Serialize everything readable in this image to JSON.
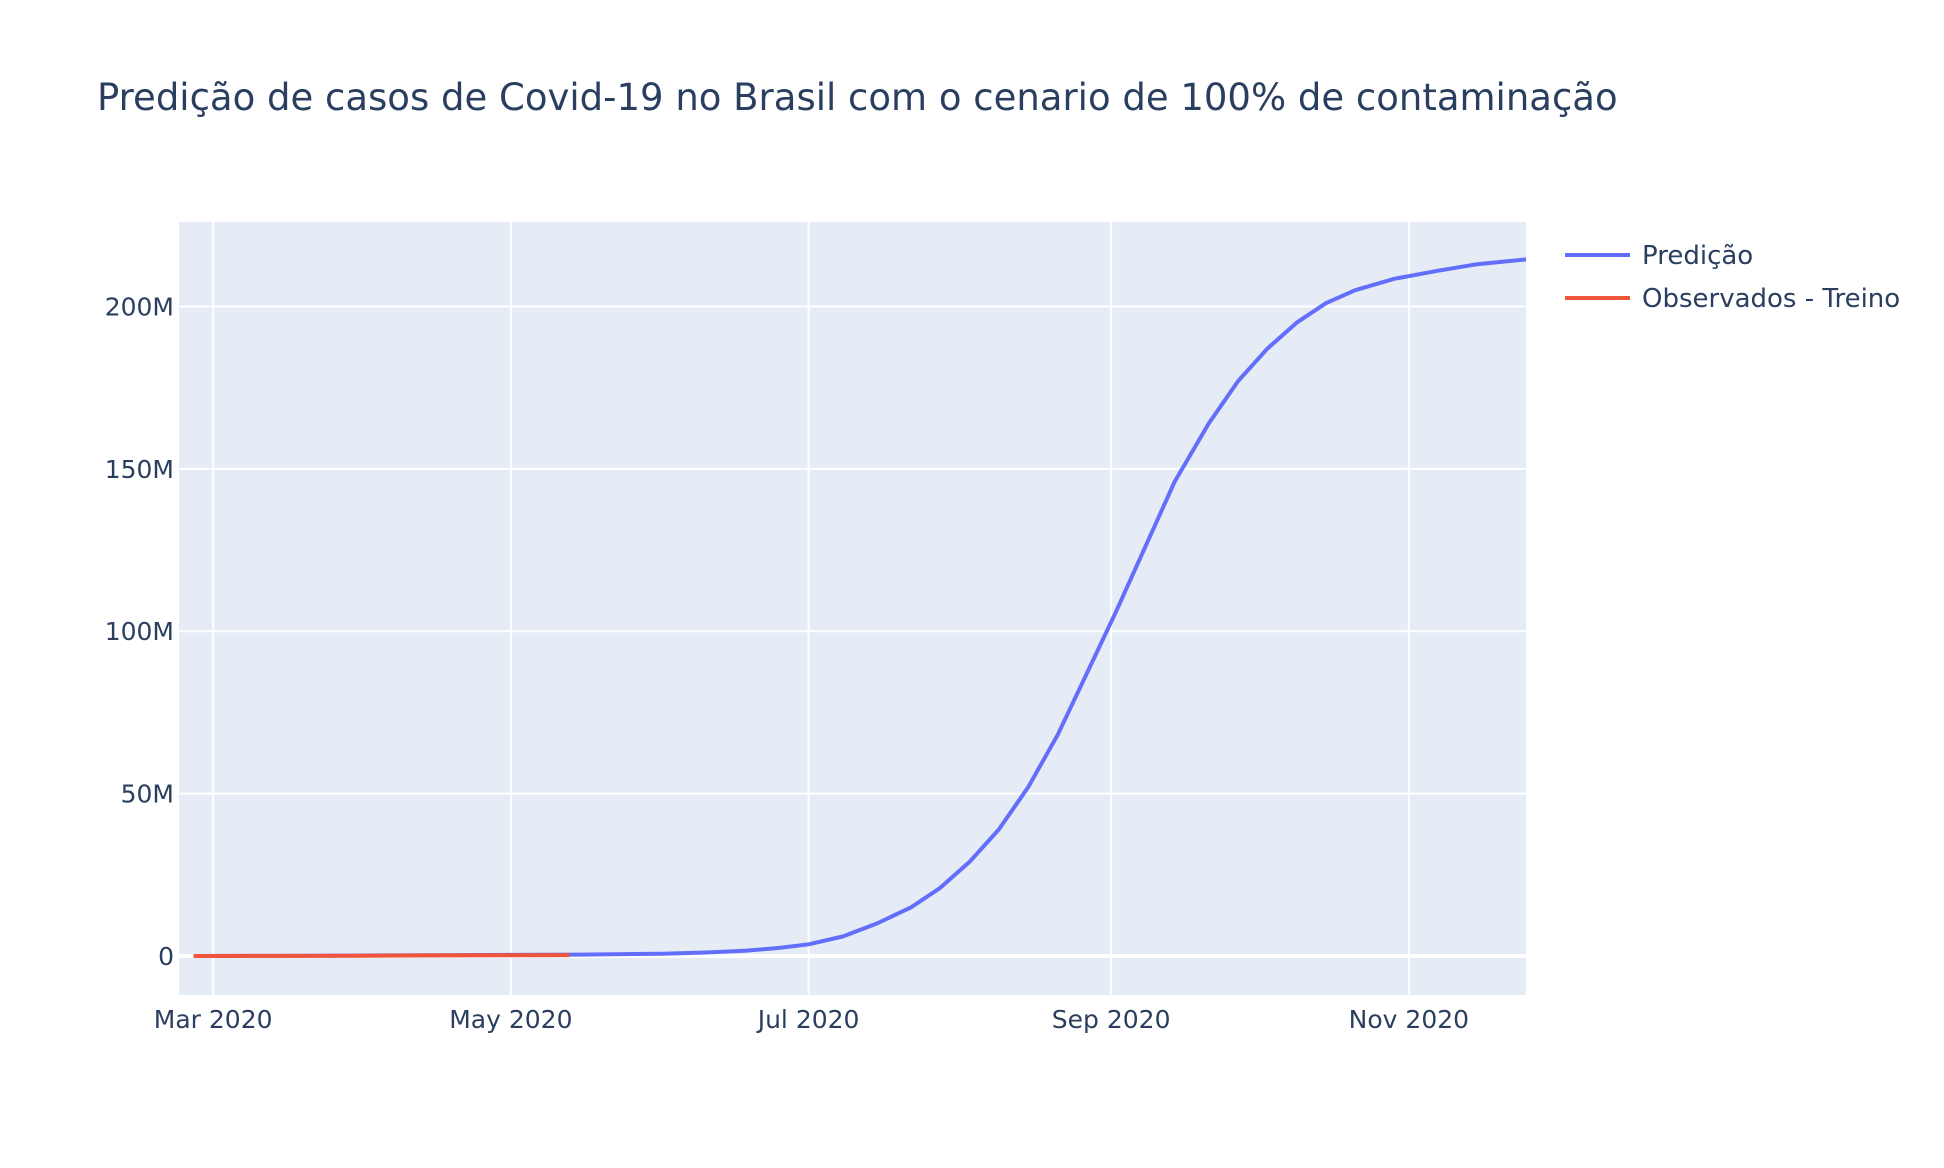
{
  "chart_data": {
    "type": "line",
    "title": "Predição de casos de Covid-19 no Brasil com o cenario de 100% de contaminação",
    "xlabel": "",
    "ylabel": "",
    "x_range": [
      "2020-02-23",
      "2020-11-25"
    ],
    "ylim": [
      -12000000,
      226000000
    ],
    "y_ticks": [
      {
        "value": 0,
        "label": "0"
      },
      {
        "value": 50000000,
        "label": "50M"
      },
      {
        "value": 100000000,
        "label": "100M"
      },
      {
        "value": 150000000,
        "label": "150M"
      },
      {
        "value": 200000000,
        "label": "200M"
      }
    ],
    "x_ticks": [
      {
        "value": "2020-03-01",
        "label": "Mar 2020"
      },
      {
        "value": "2020-05-01",
        "label": "May 2020"
      },
      {
        "value": "2020-07-01",
        "label": "Jul 2020"
      },
      {
        "value": "2020-09-01",
        "label": "Sep 2020"
      },
      {
        "value": "2020-11-01",
        "label": "Nov 2020"
      }
    ],
    "grid": true,
    "legend_position": "top-right",
    "plot_background": "#e5ecf6",
    "series": [
      {
        "name": "Predição",
        "color": "#636efa",
        "points": [
          [
            "2020-02-26",
            0
          ],
          [
            "2020-03-15",
            50000
          ],
          [
            "2020-04-01",
            150000
          ],
          [
            "2020-04-15",
            250000
          ],
          [
            "2020-05-01",
            350000
          ],
          [
            "2020-05-15",
            450000
          ],
          [
            "2020-06-01",
            700000
          ],
          [
            "2020-06-10",
            1100000
          ],
          [
            "2020-06-18",
            1600000
          ],
          [
            "2020-06-25",
            2500000
          ],
          [
            "2020-07-01",
            3600000
          ],
          [
            "2020-07-08",
            6000000
          ],
          [
            "2020-07-15",
            10000000
          ],
          [
            "2020-07-22",
            15000000
          ],
          [
            "2020-07-28",
            21000000
          ],
          [
            "2020-08-03",
            29000000
          ],
          [
            "2020-08-09",
            39000000
          ],
          [
            "2020-08-15",
            52000000
          ],
          [
            "2020-08-21",
            68000000
          ],
          [
            "2020-08-27",
            87000000
          ],
          [
            "2020-09-02",
            106000000
          ],
          [
            "2020-09-08",
            126000000
          ],
          [
            "2020-09-14",
            146000000
          ],
          [
            "2020-09-21",
            164000000
          ],
          [
            "2020-09-27",
            177000000
          ],
          [
            "2020-10-03",
            187000000
          ],
          [
            "2020-10-09",
            195000000
          ],
          [
            "2020-10-15",
            201000000
          ],
          [
            "2020-10-21",
            205000000
          ],
          [
            "2020-10-29",
            208500000
          ],
          [
            "2020-11-07",
            211000000
          ],
          [
            "2020-11-15",
            213000000
          ],
          [
            "2020-11-25",
            214500000
          ]
        ]
      },
      {
        "name": "Observados - Treino",
        "color": "#ef553b",
        "points": [
          [
            "2020-02-26",
            0
          ],
          [
            "2020-03-15",
            30000
          ],
          [
            "2020-04-01",
            100000
          ],
          [
            "2020-04-15",
            180000
          ],
          [
            "2020-05-01",
            250000
          ],
          [
            "2020-05-13",
            300000
          ]
        ]
      }
    ]
  }
}
